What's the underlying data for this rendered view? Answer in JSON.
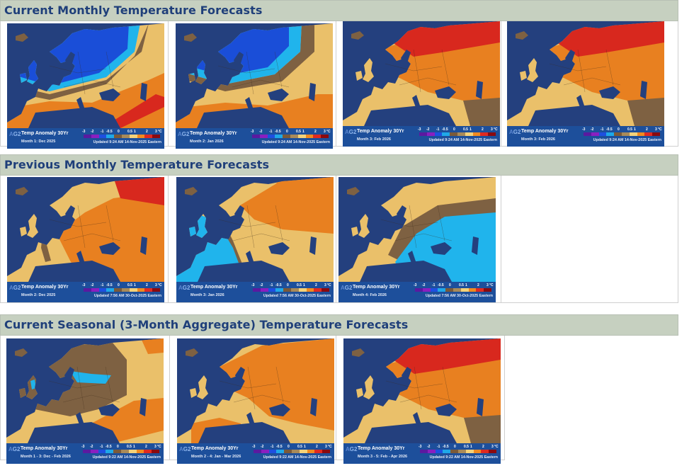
{
  "sections": [
    {
      "title": "Current Monthly Temperature Forecasts",
      "maps": [
        {
          "month": "Month 1: Dec  2025",
          "updated": "Updated 9:24 AM 14-Nov-2025 Eastern",
          "pattern": "cold-north"
        },
        {
          "month": "Month 2: Jan  2026",
          "updated": "Updated 9:24 AM 14-Nov-2025 Eastern",
          "pattern": "cold-north-2"
        },
        {
          "month": "Month 3: Feb  2026",
          "updated": "Updated 9:24 AM 14-Nov-2025 Eastern",
          "pattern": "warm-northeast"
        },
        {
          "month": "Month 3: Feb  2026",
          "updated": "Updated 9:24 AM 14-Nov-2025 Eastern",
          "pattern": "warm-northeast"
        }
      ]
    },
    {
      "title": "Previous Monthly Temperature Forecasts",
      "maps": [
        {
          "month": "Month 2: Dec  2025",
          "updated": "Updated 7:56 AM 30-Oct-2025 Eastern",
          "pattern": "warm-east"
        },
        {
          "month": "Month 3: Jan  2026",
          "updated": "Updated 7:56 AM 30-Oct-2025 Eastern",
          "pattern": "cold-west"
        },
        {
          "month": "Month 4: Feb  2026",
          "updated": "Updated 7:56 AM 30-Oct-2025 Eastern",
          "pattern": "cold-southeast"
        }
      ]
    },
    {
      "title": "Current Seasonal (3-Month Aggregate) Temperature Forecasts",
      "maps": [
        {
          "month": "Month 1 - 3: Dec - Feb 2026",
          "updated": "Updated 9:22 AM 14-Nov-2025 Eastern",
          "pattern": "neutral-mixed"
        },
        {
          "month": "Month 2 - 4: Jan - Mar 2026",
          "updated": "Updated 9:22 AM 14-Nov-2025 Eastern",
          "pattern": "warm-broad"
        },
        {
          "month": "Month 3 - 5: Feb - Apr 2026",
          "updated": "Updated 9:22 AM 14-Nov-2025 Eastern",
          "pattern": "warm-northeast"
        }
      ]
    }
  ],
  "legend": {
    "logo": "AG2",
    "title": "Temp Anomaly 30Yr",
    "unit": "°C",
    "ticks": [
      "-3",
      "-2",
      "-1",
      "-0.5",
      "0",
      "0.5",
      "1",
      "2",
      "3"
    ],
    "colors": [
      "#5a1aa0",
      "#8a1fc0",
      "#1e4fe0",
      "#1fa8e8",
      "#7a5a3a",
      "#a88a5a",
      "#f4d27a",
      "#f08a20",
      "#e02a20",
      "#8a0a10"
    ]
  },
  "palette": {
    "sea": "#24407e",
    "cold_deep": "#1a4ed8",
    "cold_light": "#20b4ec",
    "neutral": "#7e6142",
    "warm_light": "#eac06a",
    "warm": "#e88020",
    "hot": "#d8281e"
  }
}
